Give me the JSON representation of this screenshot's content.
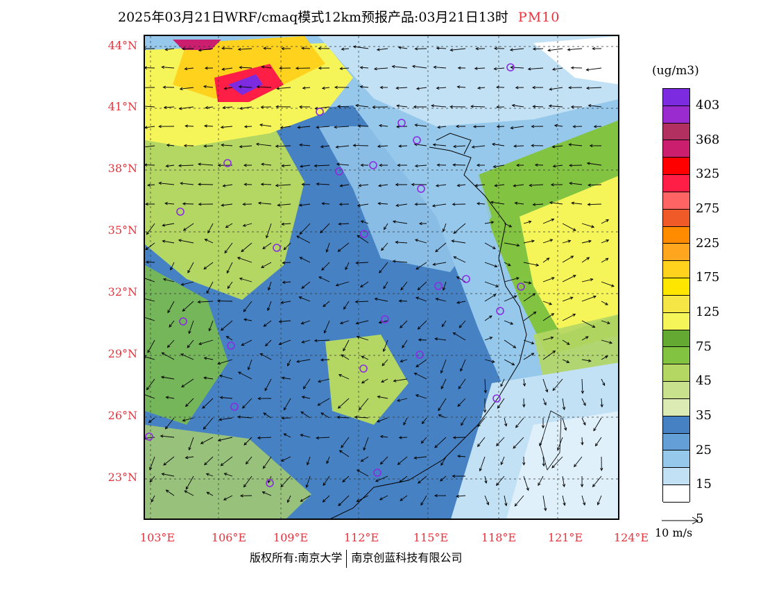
{
  "title": {
    "main": "2025年03月21日WRF/cmaq模式12km预报产品:03月21日13时",
    "variable": "PM10"
  },
  "latitude_labels": [
    "44°N",
    "41°N",
    "38°N",
    "35°N",
    "32°N",
    "29°N",
    "26°N",
    "23°N"
  ],
  "longitude_labels": [
    "103°E",
    "106°E",
    "109°E",
    "112°E",
    "115°E",
    "118°E",
    "121°E",
    "124°E"
  ],
  "colorbar": {
    "units": "(ug/m3)",
    "labels": [
      "403",
      "368",
      "325",
      "275",
      "225",
      "175",
      "125",
      "75",
      "45",
      "35",
      "25",
      "15",
      "5"
    ],
    "colors": [
      "#7d2be0",
      "#9a2ccf",
      "#b2305f",
      "#cc1e6e",
      "#ff0000",
      "#ff1e46",
      "#ff6464",
      "#f05a28",
      "#ff8c00",
      "#ffa51e",
      "#ffd21e",
      "#ffe600",
      "#f5e646",
      "#f5f55a",
      "#64aa32",
      "#82c341",
      "#b4d764",
      "#c8e18c",
      "#dcebb4",
      "#4682c3",
      "#64a0d7",
      "#96c8eb",
      "#c3e1f5",
      "#ffffff"
    ]
  },
  "wind_reference": {
    "label": "10 m/s"
  },
  "footer": {
    "copyright": "版权所有:南京大学",
    "company": "南京创蓝科技有限公司"
  }
}
